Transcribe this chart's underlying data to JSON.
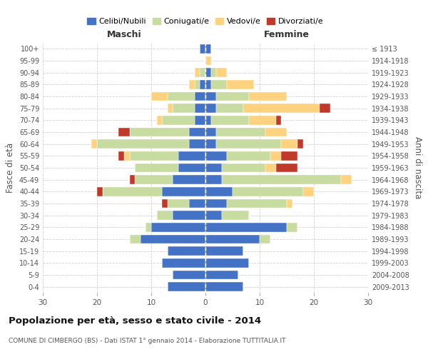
{
  "age_groups": [
    "0-4",
    "5-9",
    "10-14",
    "15-19",
    "20-24",
    "25-29",
    "30-34",
    "35-39",
    "40-44",
    "45-49",
    "50-54",
    "55-59",
    "60-64",
    "65-69",
    "70-74",
    "75-79",
    "80-84",
    "85-89",
    "90-94",
    "95-99",
    "100+"
  ],
  "birth_years": [
    "2009-2013",
    "2004-2008",
    "1999-2003",
    "1994-1998",
    "1989-1993",
    "1984-1988",
    "1979-1983",
    "1974-1978",
    "1969-1973",
    "1964-1968",
    "1959-1963",
    "1954-1958",
    "1949-1953",
    "1944-1948",
    "1939-1943",
    "1934-1938",
    "1929-1933",
    "1924-1928",
    "1919-1923",
    "1914-1918",
    "≤ 1913"
  ],
  "maschi": {
    "celibi": [
      7,
      6,
      8,
      7,
      12,
      10,
      6,
      3,
      8,
      6,
      5,
      5,
      3,
      3,
      2,
      2,
      2,
      1,
      0,
      0,
      1
    ],
    "coniugati": [
      0,
      0,
      0,
      0,
      2,
      1,
      3,
      4,
      11,
      7,
      8,
      9,
      17,
      11,
      6,
      4,
      5,
      1,
      1,
      0,
      0
    ],
    "vedovi": [
      0,
      0,
      0,
      0,
      0,
      0,
      0,
      0,
      0,
      0,
      0,
      1,
      1,
      0,
      1,
      1,
      3,
      1,
      1,
      0,
      0
    ],
    "divorziati": [
      0,
      0,
      0,
      0,
      0,
      0,
      0,
      1,
      1,
      1,
      0,
      1,
      0,
      2,
      0,
      0,
      0,
      0,
      0,
      0,
      0
    ]
  },
  "femmine": {
    "nubili": [
      7,
      6,
      8,
      7,
      10,
      15,
      3,
      4,
      5,
      3,
      3,
      4,
      2,
      2,
      1,
      2,
      2,
      1,
      1,
      0,
      1
    ],
    "coniugate": [
      0,
      0,
      0,
      0,
      2,
      2,
      5,
      11,
      13,
      22,
      8,
      8,
      12,
      9,
      7,
      5,
      6,
      3,
      1,
      0,
      0
    ],
    "vedove": [
      0,
      0,
      0,
      0,
      0,
      0,
      0,
      1,
      2,
      2,
      2,
      2,
      3,
      4,
      5,
      14,
      7,
      5,
      2,
      1,
      0
    ],
    "divorziate": [
      0,
      0,
      0,
      0,
      0,
      0,
      0,
      0,
      0,
      0,
      4,
      3,
      1,
      0,
      1,
      2,
      0,
      0,
      0,
      0,
      0
    ]
  },
  "colors": {
    "celibi": "#4472C4",
    "coniugati": "#c8dba0",
    "vedovi": "#ffd27f",
    "divorziati": "#c0392b"
  },
  "xlim": 30,
  "title": "Popolazione per età, sesso e stato civile - 2014",
  "subtitle": "COMUNE DI CIMBERGO (BS) - Dati ISTAT 1° gennaio 2014 - Elaborazione TUTTITALIA.IT",
  "ylabel_left": "Fasce di età",
  "ylabel_right": "Anni di nascita",
  "xlabel_maschi": "Maschi",
  "xlabel_femmine": "Femmine",
  "legend_labels": [
    "Celibi/Nubili",
    "Coniugati/e",
    "Vedovi/e",
    "Divorziati/e"
  ],
  "bg_color": "#ffffff",
  "grid_color": "#cccccc",
  "bar_height": 0.75
}
